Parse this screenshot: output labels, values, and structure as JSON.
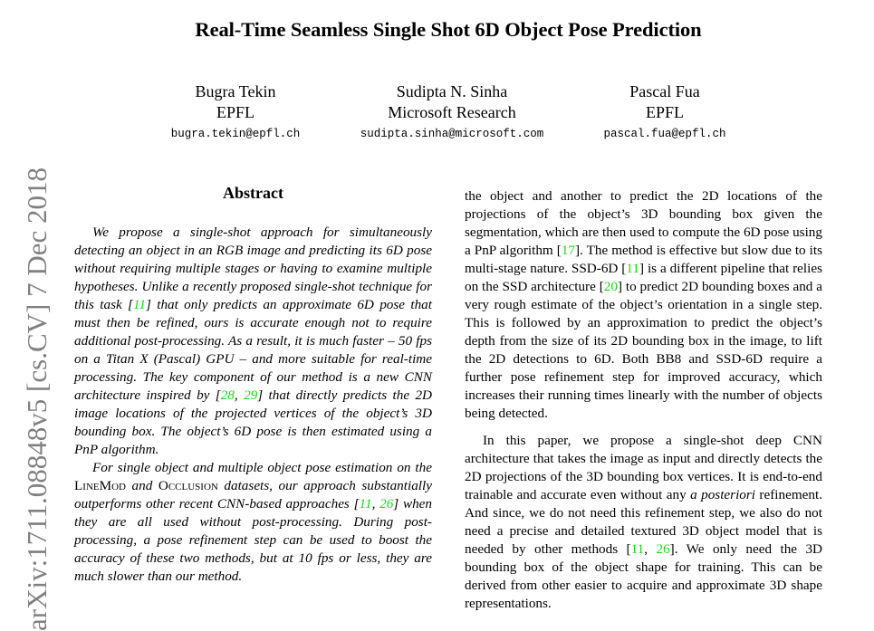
{
  "paper": {
    "title": "Real-Time Seamless Single Shot 6D Object Pose Prediction",
    "authors": [
      {
        "name": "Bugra Tekin",
        "affiliation": "EPFL",
        "email": "bugra.tekin@epfl.ch"
      },
      {
        "name": "Sudipta N. Sinha",
        "affiliation": "Microsoft Research",
        "email": "sudipta.sinha@microsoft.com"
      },
      {
        "name": "Pascal Fua",
        "affiliation": "EPFL",
        "email": "pascal.fua@epfl.ch"
      }
    ],
    "arxiv_id": "arXiv:1711.08848v5  [cs.CV]  7 Dec 2018",
    "abstract_heading": "Abstract",
    "abstract": {
      "p1_a": "We propose a single-shot approach for simultaneously detecting an object in an RGB image and predicting its 6D pose without requiring multiple stages or having to examine multiple hypotheses. Unlike a recently proposed single-shot technique for this task [",
      "p1_c1": "11",
      "p1_b": "] that only predicts an approximate 6D pose that must then be refined, ours is accurate enough not to require additional post-processing. As a result, it is much faster – 50 fps on a Titan X (Pascal) GPU – and more suitable for real-time processing. The key component of our method is a new CNN architecture inspired by [",
      "p1_c2": "28",
      "p1_c3": "29",
      "p1_c": "] that directly predicts the 2D image locations of the projected vertices of the object’s 3D bounding box. The object’s 6D pose is then estimated using a PnP algorithm.",
      "p2_a": "For single object and multiple object pose estimation on the ",
      "p2_sc1": "LineMod",
      "p2_b": " and ",
      "p2_sc2": "Occlusion",
      "p2_c": " datasets, our approach substantially outperforms other recent CNN-based approaches [",
      "p2_c1": "11",
      "p2_c2": "26",
      "p2_d": "] when they are all used without post-processing. During post-processing, a pose refinement step can be used to boost the accuracy of these two methods, but at 10 fps or less, they are much slower than our method."
    },
    "intro": {
      "p1_a": "the object and another to predict the 2D locations of the projections of the object’s 3D bounding box given the segmentation, which are then used to compute the 6D pose using a PnP algorithm [",
      "p1_c1": "17",
      "p1_b": "]. The method is effective but slow due to its multi-stage nature.  SSD-6D [",
      "p1_c2": "11",
      "p1_c": "] is a different pipeline that relies on the SSD architecture [",
      "p1_c3": "20",
      "p1_d": "] to predict 2D bounding boxes and a very rough estimate of the object’s orientation in a single step. This is followed by an approximation to predict the object’s depth from the size of its 2D bounding box in the image, to lift the 2D detections to 6D. Both BB8 and SSD-6D require a further pose refinement step for improved accuracy, which increases their running times linearly with the number of objects being detected.",
      "p2_a": "In this paper, we propose a single-shot deep CNN architecture that takes the image as input and directly detects the 2D projections of the 3D bounding box vertices. It is end-to-end trainable and accurate even without any ",
      "p2_it": "a posteriori",
      "p2_b": " refinement. And since, we do not need this refinement step, we also do not need a precise and detailed textured 3D object model that is needed by other methods [",
      "p2_c1": "11",
      "p2_c2": "26",
      "p2_c": "]. We only need the 3D bounding box of the object shape for training. This can be derived from other easier to acquire and approximate 3D shape representations."
    }
  }
}
